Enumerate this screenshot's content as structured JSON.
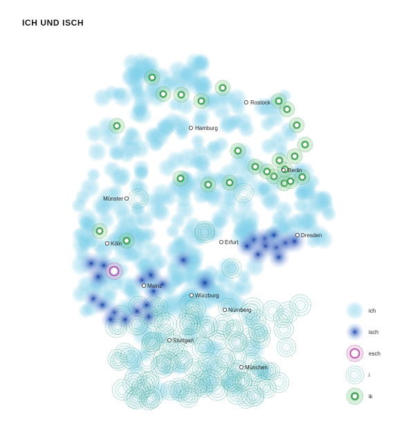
{
  "title": "ICH UND ISCH",
  "colors": {
    "ich": "#7fcfe9",
    "isch": "#2b55b5",
    "esch": "#b04aa0",
    "i": "#2f9e8f",
    "ik": "#3a9a4a"
  },
  "cities": [
    {
      "name": "Rostock"
    },
    {
      "name": "Hamburg"
    },
    {
      "name": "Berlin"
    },
    {
      "name": "Münster"
    },
    {
      "name": "Dresden"
    },
    {
      "name": "Köln"
    },
    {
      "name": "Erfurt"
    },
    {
      "name": "Mainz"
    },
    {
      "name": "Würzburg"
    },
    {
      "name": "Nürnberg"
    },
    {
      "name": "Stuttgart"
    },
    {
      "name": "München"
    }
  ],
  "legend": [
    {
      "key": "ich",
      "label": "ich",
      "icon": "ich-circle-icon"
    },
    {
      "key": "isch",
      "label": "isch",
      "icon": "isch-circle-icon"
    },
    {
      "key": "esch",
      "label": "esch",
      "icon": "esch-circle-icon"
    },
    {
      "key": "i",
      "label": "i",
      "icon": "i-circle-icon"
    },
    {
      "key": "ik",
      "label": "ik",
      "icon": "ik-circle-icon"
    }
  ]
}
